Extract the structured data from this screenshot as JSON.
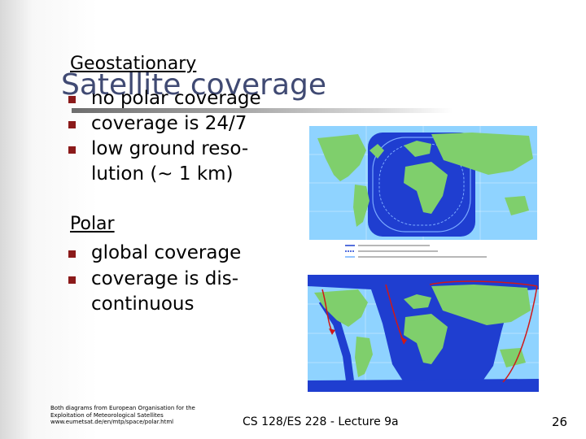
{
  "slide": {
    "title": "Satellite coverage",
    "geo": {
      "heading": "Geostationary",
      "bullets": [
        "no polar coverage",
        "coverage is 24/7",
        "low ground reso-",
        "lution (~ 1 km)"
      ]
    },
    "polar": {
      "heading": "Polar",
      "bullets": [
        "global coverage",
        "coverage is dis-",
        "continuous"
      ]
    },
    "footnote": [
      "Both diagrams from European Organisation for the",
      "Exploitation of Meteorological Satellites",
      "www.eumetsat.de/en/mtp/space/polar.html"
    ],
    "footer": "CS 128/ES 228 - Lecture 9a",
    "page_number": "26",
    "colors": {
      "title": "#404a73",
      "bullet": "#8b1a1a",
      "ocean": "#1c3fd0",
      "coverage": "#6fb1ff",
      "land": "#8dd07a",
      "track": "#d01818"
    }
  }
}
